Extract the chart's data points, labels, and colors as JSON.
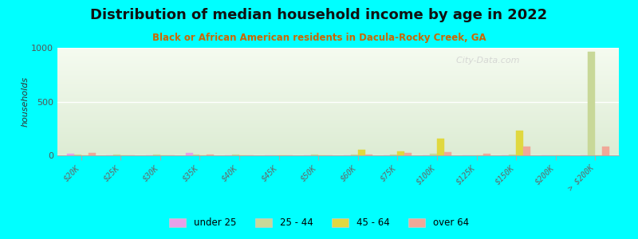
{
  "title": "Distribution of median household income by age in 2022",
  "subtitle": "Black or African American residents in Dacula-Rocky Creek, GA",
  "xlabel_categories": [
    "$20K",
    "$25K",
    "$30K",
    "$35K",
    "$40K",
    "$45K",
    "$50K",
    "$60K",
    "$75K",
    "$100K",
    "$125K",
    "$150K",
    "$200K",
    "> $200K"
  ],
  "bar_width": 0.18,
  "colors": {
    "under25": "#e8a0e8",
    "25_44": "#c8d898",
    "45_64": "#e0d840",
    "over64": "#f0a898"
  },
  "data": {
    "under25": [
      18,
      0,
      0,
      25,
      0,
      0,
      0,
      0,
      0,
      0,
      0,
      0,
      0,
      0
    ],
    "25_44": [
      5,
      10,
      8,
      5,
      8,
      0,
      8,
      5,
      10,
      12,
      0,
      8,
      0,
      960
    ],
    "45_64": [
      0,
      0,
      0,
      0,
      0,
      0,
      0,
      50,
      35,
      155,
      0,
      230,
      0,
      0
    ],
    "over64": [
      22,
      0,
      0,
      10,
      0,
      0,
      0,
      10,
      22,
      30,
      18,
      80,
      0,
      80
    ]
  },
  "ylim": [
    0,
    1000
  ],
  "yticks": [
    0,
    500,
    1000
  ],
  "ylabel": "households",
  "background_color": "#00ffff",
  "plot_bg_top": "#ddecd4",
  "plot_bg_bottom": "#f5fbf0",
  "watermark": "  City-Data.com",
  "watermark_icon": "@",
  "legend_labels": [
    "under 25",
    "25 - 44",
    "45 - 64",
    "over 64"
  ],
  "title_fontsize": 13,
  "subtitle_fontsize": 8.5,
  "subtitle_color": "#cc6600"
}
